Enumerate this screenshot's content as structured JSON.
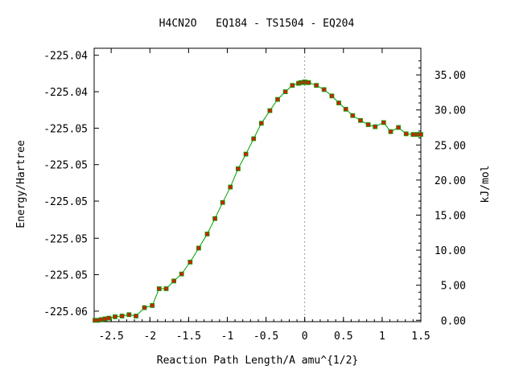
{
  "chart_data": {
    "type": "line",
    "title": "H4CN2O   EQ184 - TS1504 - EQ204",
    "xlabel": "Reaction Path Length/A amu^{1/2}",
    "ylabel_left": "Energy/Hartree",
    "ylabel_right": "kJ/mol",
    "xlim": [
      -2.72,
      1.5
    ],
    "ylim_right": [
      -0.2,
      38.8
    ],
    "x_ticks": [
      -2.5,
      -2,
      -1.5,
      -1,
      -0.5,
      0,
      0.5,
      1,
      1.5
    ],
    "x_tick_labels": [
      "-2.5",
      "-2",
      "-1.5",
      "-1",
      "-0.5",
      "0",
      "0.5",
      "1",
      "1.5"
    ],
    "left_ticks_kj": [
      37.8,
      32.6,
      27.4,
      22.2,
      17.0,
      11.7,
      6.5,
      1.3
    ],
    "left_tick_labels": [
      "-225.04",
      "-225.04",
      "-225.05",
      "-225.05",
      "-225.05",
      "-225.05",
      "-225.05",
      "-225.06"
    ],
    "right_ticks": [
      0,
      5,
      10,
      15,
      20,
      25,
      30,
      35
    ],
    "right_tick_labels": [
      "0.00",
      "5.00",
      "10.00",
      "15.00",
      "20.00",
      "25.00",
      "30.00",
      "35.00"
    ],
    "ts_x": 0,
    "line_color": "#00a000",
    "marker_color": "#cc2200",
    "series": [
      {
        "x": [
          -2.71,
          -2.67,
          -2.63,
          -2.58,
          -2.53,
          -2.45,
          -2.36,
          -2.27,
          -2.18,
          -2.07,
          -1.97,
          -1.88,
          -1.79,
          -1.69,
          -1.59,
          -1.48,
          -1.37,
          -1.26,
          -1.16,
          -1.06,
          -0.96,
          -0.86,
          -0.76,
          -0.66,
          -0.56,
          -0.45,
          -0.35,
          -0.25,
          -0.16,
          -0.08,
          -0.05,
          -0.02,
          0.0,
          0.03,
          0.05,
          0.15,
          0.25,
          0.35,
          0.44,
          0.53,
          0.62,
          0.72,
          0.82,
          0.91,
          1.02,
          1.11,
          1.21,
          1.31,
          1.4,
          1.45,
          1.48,
          1.5
        ],
        "y": [
          0.0,
          0.0,
          0.1,
          0.2,
          0.3,
          0.5,
          0.6,
          0.8,
          0.6,
          1.8,
          2.1,
          4.5,
          4.5,
          5.6,
          6.6,
          8.3,
          10.3,
          12.3,
          14.5,
          16.8,
          19.0,
          21.6,
          23.7,
          25.9,
          28.1,
          29.9,
          31.5,
          32.6,
          33.5,
          33.8,
          33.9,
          33.9,
          34.0,
          33.9,
          33.9,
          33.5,
          32.9,
          32.0,
          31.0,
          30.1,
          29.2,
          28.5,
          27.9,
          27.6,
          28.2,
          26.9,
          27.5,
          26.6,
          26.5,
          26.5,
          26.5,
          26.5
        ]
      }
    ]
  }
}
